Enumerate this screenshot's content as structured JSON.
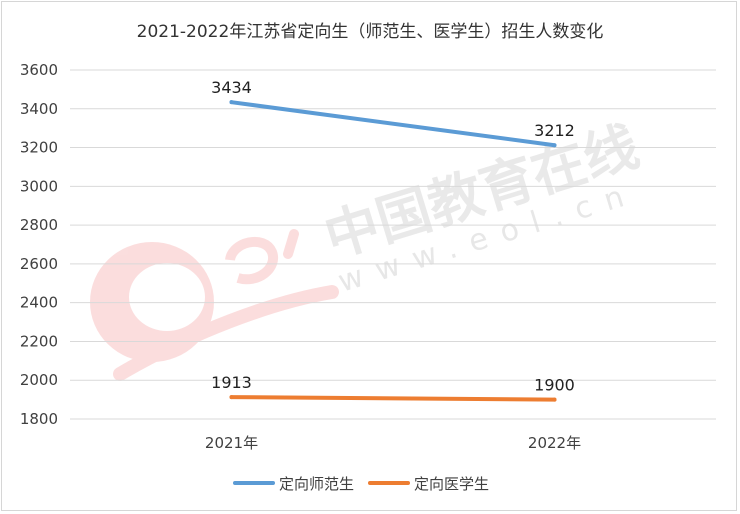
{
  "watermark": {
    "brand": "中国教育在线",
    "url": "www.eol.cn",
    "logo": "eol"
  },
  "chart_data": {
    "type": "line",
    "title": "2021-2022年江苏省定向生（师范生、医学生）招生人数变化",
    "categories": [
      "2021年",
      "2022年"
    ],
    "series": [
      {
        "name": "定向师范生",
        "values": [
          3434,
          3212
        ],
        "color": "#5b9bd5"
      },
      {
        "name": "定向医学生",
        "values": [
          1913,
          1900
        ],
        "color": "#ed7d31"
      }
    ],
    "ylim": [
      1800,
      3600
    ],
    "yticks": [
      1800,
      2000,
      2200,
      2400,
      2600,
      2800,
      3000,
      3200,
      3400,
      3600
    ],
    "xlabel": "",
    "ylabel": "",
    "grid": true,
    "legend_position": "bottom",
    "data_labels": true
  }
}
